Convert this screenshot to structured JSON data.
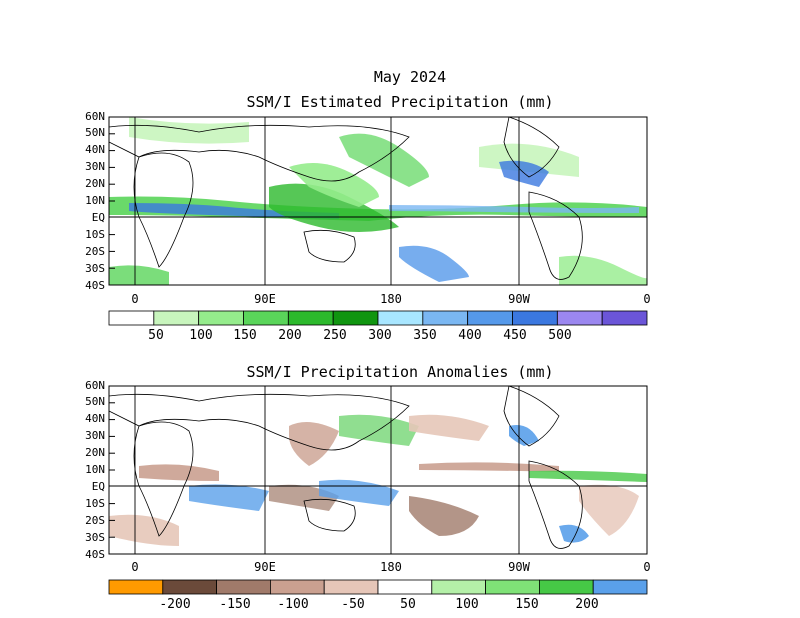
{
  "figure": {
    "title_line1": "May 2024",
    "panel1_title": "SSM/I Estimated Precipitation (mm)",
    "panel2_title": "SSM/I Precipitation Anomalies (mm)"
  },
  "axes": {
    "lat_labels": [
      "60N",
      "50N",
      "40N",
      "30N",
      "20N",
      "10N",
      "EQ",
      "10S",
      "20S",
      "30S",
      "40S"
    ],
    "lon_labels": [
      "0",
      "90E",
      "180",
      "90W",
      "0"
    ]
  },
  "colorbar1": {
    "labels": [
      "50",
      "100",
      "150",
      "200",
      "250",
      "300",
      "350",
      "400",
      "450",
      "500"
    ],
    "colors": [
      "#ffffff",
      "#c8f5bd",
      "#95ec8c",
      "#5ad55a",
      "#2cb92c",
      "#109510",
      "#a8e6ff",
      "#7ab7f2",
      "#5599ea",
      "#3b78e0",
      "#9b87f0",
      "#6b55d8"
    ]
  },
  "colorbar2": {
    "labels": [
      "-200",
      "-150",
      "-100",
      "-50",
      "50",
      "100",
      "150",
      "200"
    ],
    "colors": [
      "#ff9a00",
      "#6b4a3a",
      "#a07a6a",
      "#caa090",
      "#e6c6b8",
      "#ffffff",
      "#b4f0a8",
      "#7fe277",
      "#46c846",
      "#5aa0ea"
    ]
  },
  "colors": {
    "land_outline": "#000000",
    "grid": "#000000"
  }
}
